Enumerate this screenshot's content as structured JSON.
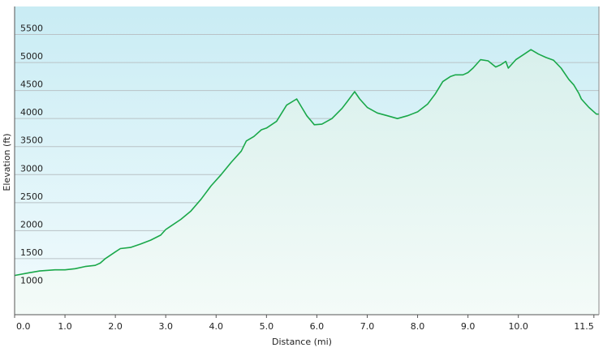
{
  "chart_data": {
    "type": "area",
    "title": "",
    "xlabel": "Distance (mi)",
    "ylabel": "Elevation (ft)",
    "xlim": [
      0,
      11.6
    ],
    "ylim": [
      500,
      6000
    ],
    "x_ticks": [
      0.0,
      1.0,
      2.0,
      3.0,
      4.0,
      5.0,
      6.0,
      7.0,
      8.0,
      9.0,
      10.0,
      11.5
    ],
    "x_tick_labels": [
      "0.0",
      "1.0",
      "2.0",
      "3.0",
      "4.0",
      "5.0",
      "6.0",
      "7.0",
      "8.0",
      "9.0",
      "10.0",
      "11.5"
    ],
    "y_ticks": [
      1000,
      1500,
      2000,
      2500,
      3000,
      3500,
      4000,
      4500,
      5000,
      5500
    ],
    "y_tick_labels": [
      "1000",
      "1500",
      "2000",
      "2500",
      "3000",
      "3500",
      "4000",
      "4500",
      "5000",
      "5500"
    ],
    "grid": true,
    "colors": {
      "line": "#1aa84a",
      "fill_top": "#d8f0ec",
      "fill_bottom": "#f4fbf8",
      "grid": "#b9c2c6",
      "axis": "#555555"
    },
    "series": [
      {
        "x": [
          0.0,
          0.3,
          0.5,
          0.8,
          1.0,
          1.2,
          1.4,
          1.6,
          1.7,
          1.8,
          2.0,
          2.1,
          2.3,
          2.5,
          2.7,
          2.9,
          3.0,
          3.1,
          3.3,
          3.5,
          3.7,
          3.9,
          4.1,
          4.3,
          4.5,
          4.6,
          4.75,
          4.9,
          5.0,
          5.2,
          5.4,
          5.6,
          5.7,
          5.8,
          5.95,
          6.1,
          6.3,
          6.5,
          6.6,
          6.75,
          6.85,
          7.0,
          7.2,
          7.4,
          7.6,
          7.8,
          8.0,
          8.2,
          8.35,
          8.5,
          8.65,
          8.75,
          8.9,
          9.0,
          9.1,
          9.25,
          9.4,
          9.55,
          9.65,
          9.75,
          9.8,
          9.95,
          10.1,
          10.25,
          10.4,
          10.55,
          10.7,
          10.85,
          11.0,
          11.1,
          11.2,
          11.25,
          11.3,
          11.4,
          11.55,
          11.6
        ],
        "y": [
          1200,
          1250,
          1280,
          1300,
          1300,
          1320,
          1360,
          1380,
          1420,
          1500,
          1620,
          1680,
          1700,
          1760,
          1830,
          1920,
          2020,
          2080,
          2200,
          2350,
          2560,
          2800,
          3000,
          3220,
          3420,
          3600,
          3680,
          3800,
          3830,
          3950,
          4240,
          4350,
          4200,
          4050,
          3890,
          3900,
          4000,
          4180,
          4300,
          4480,
          4350,
          4200,
          4100,
          4050,
          4000,
          4050,
          4120,
          4260,
          4440,
          4660,
          4750,
          4780,
          4780,
          4820,
          4900,
          5050,
          5030,
          4920,
          4960,
          5020,
          4900,
          5050,
          5140,
          5230,
          5150,
          5090,
          5040,
          4900,
          4700,
          4600,
          4450,
          4350,
          4300,
          4200,
          4080,
          4080
        ]
      }
    ]
  }
}
